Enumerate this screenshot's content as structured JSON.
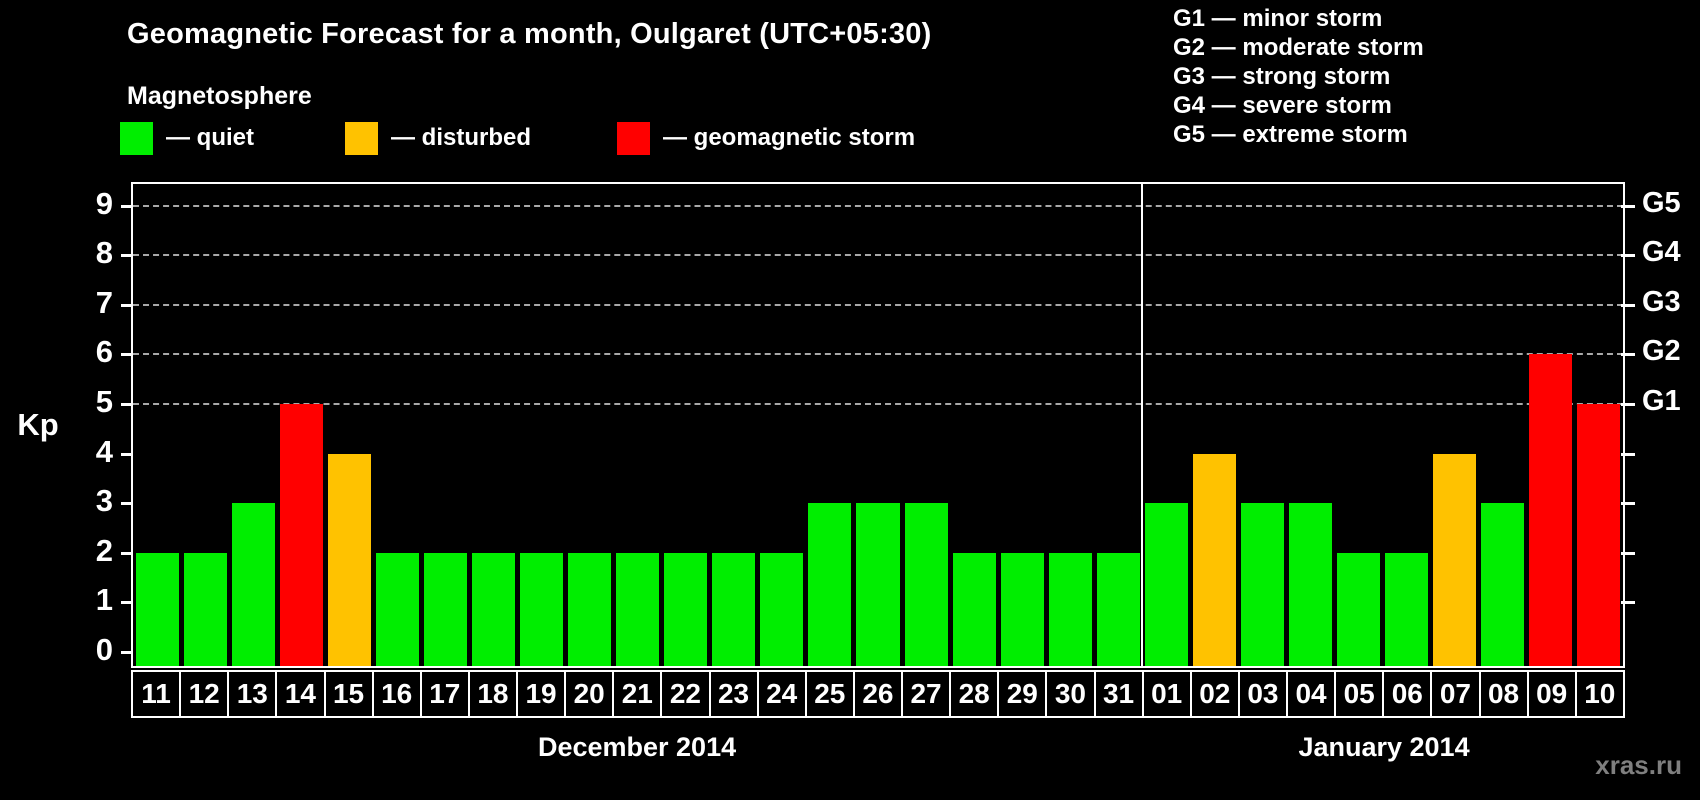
{
  "header": {
    "title": "Geomagnetic Forecast for a month, Oulgaret (UTC+05:30)",
    "subtitle": "Magnetosphere"
  },
  "legend": {
    "items": [
      {
        "label": "— quiet",
        "status": "quiet",
        "color": "#00EE00"
      },
      {
        "label": "— disturbed",
        "status": "disturbed",
        "color": "#FFC200"
      },
      {
        "label": "— geomagnetic storm",
        "status": "storm",
        "color": "#FF0000"
      }
    ]
  },
  "g_legend": [
    "G1 — minor storm",
    "G2 — moderate storm",
    "G3 — strong storm",
    "G4 — severe storm",
    "G5 — extreme storm"
  ],
  "watermark": "xras.ru",
  "chart_data": {
    "type": "bar",
    "title": "Geomagnetic Forecast for a month, Oulgaret (UTC+05:30)",
    "ylabel": "Kp",
    "ylim": [
      0,
      9
    ],
    "y_ticks": [
      0,
      1,
      2,
      3,
      4,
      5,
      6,
      7,
      8,
      9
    ],
    "gridlines_at": [
      5,
      6,
      7,
      8,
      9
    ],
    "grid": "dashed horizontal at storm levels only",
    "legend_position": "top",
    "right_axis": {
      "tick_values": [
        1,
        2,
        3,
        4,
        5,
        6,
        7,
        8,
        9
      ],
      "labels": [
        {
          "text": "G1",
          "value": 5
        },
        {
          "text": "G2",
          "value": 6
        },
        {
          "text": "G3",
          "value": 7
        },
        {
          "text": "G4",
          "value": 8
        },
        {
          "text": "G5",
          "value": 9
        }
      ]
    },
    "months": [
      {
        "label": "December 2014",
        "days_count": 21
      },
      {
        "label": "January 2014",
        "days_count": 10
      }
    ],
    "days": [
      {
        "day": "11",
        "month": "December 2014",
        "value": 2,
        "status": "quiet"
      },
      {
        "day": "12",
        "month": "December 2014",
        "value": 2,
        "status": "quiet"
      },
      {
        "day": "13",
        "month": "December 2014",
        "value": 3,
        "status": "quiet"
      },
      {
        "day": "14",
        "month": "December 2014",
        "value": 5,
        "status": "storm"
      },
      {
        "day": "15",
        "month": "December 2014",
        "value": 4,
        "status": "disturbed"
      },
      {
        "day": "16",
        "month": "December 2014",
        "value": 2,
        "status": "quiet"
      },
      {
        "day": "17",
        "month": "December 2014",
        "value": 2,
        "status": "quiet"
      },
      {
        "day": "18",
        "month": "December 2014",
        "value": 2,
        "status": "quiet"
      },
      {
        "day": "19",
        "month": "December 2014",
        "value": 2,
        "status": "quiet"
      },
      {
        "day": "20",
        "month": "December 2014",
        "value": 2,
        "status": "quiet"
      },
      {
        "day": "21",
        "month": "December 2014",
        "value": 2,
        "status": "quiet"
      },
      {
        "day": "22",
        "month": "December 2014",
        "value": 2,
        "status": "quiet"
      },
      {
        "day": "23",
        "month": "December 2014",
        "value": 2,
        "status": "quiet"
      },
      {
        "day": "24",
        "month": "December 2014",
        "value": 2,
        "status": "quiet"
      },
      {
        "day": "25",
        "month": "December 2014",
        "value": 3,
        "status": "quiet"
      },
      {
        "day": "26",
        "month": "December 2014",
        "value": 3,
        "status": "quiet"
      },
      {
        "day": "27",
        "month": "December 2014",
        "value": 3,
        "status": "quiet"
      },
      {
        "day": "28",
        "month": "December 2014",
        "value": 2,
        "status": "quiet"
      },
      {
        "day": "29",
        "month": "December 2014",
        "value": 2,
        "status": "quiet"
      },
      {
        "day": "30",
        "month": "December 2014",
        "value": 2,
        "status": "quiet"
      },
      {
        "day": "31",
        "month": "December 2014",
        "value": 2,
        "status": "quiet"
      },
      {
        "day": "01",
        "month": "January 2014",
        "value": 3,
        "status": "quiet"
      },
      {
        "day": "02",
        "month": "January 2014",
        "value": 4,
        "status": "disturbed"
      },
      {
        "day": "03",
        "month": "January 2014",
        "value": 3,
        "status": "quiet"
      },
      {
        "day": "04",
        "month": "January 2014",
        "value": 3,
        "status": "quiet"
      },
      {
        "day": "05",
        "month": "January 2014",
        "value": 2,
        "status": "quiet"
      },
      {
        "day": "06",
        "month": "January 2014",
        "value": 2,
        "status": "quiet"
      },
      {
        "day": "07",
        "month": "January 2014",
        "value": 4,
        "status": "disturbed"
      },
      {
        "day": "08",
        "month": "January 2014",
        "value": 3,
        "status": "quiet"
      },
      {
        "day": "09",
        "month": "January 2014",
        "value": 6,
        "status": "storm"
      },
      {
        "day": "10",
        "month": "January 2014",
        "value": 5,
        "status": "storm"
      }
    ]
  }
}
